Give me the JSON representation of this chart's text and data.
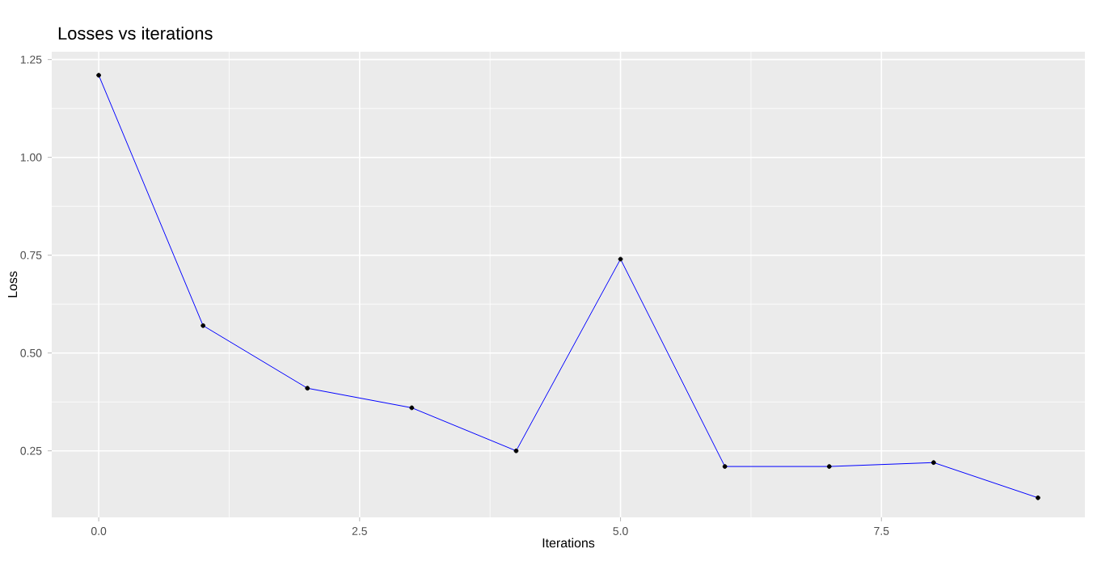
{
  "chart_data": {
    "type": "line",
    "title": "Losses vs iterations",
    "xlabel": "Iterations",
    "ylabel": "Loss",
    "x": [
      0,
      1,
      2,
      3,
      4,
      5,
      6,
      7,
      8,
      9
    ],
    "series": [
      {
        "type": "line",
        "color": "#0000ff",
        "marker": "none",
        "values": [
          1.21,
          0.57,
          0.41,
          0.36,
          0.25,
          0.74,
          0.21,
          0.21,
          0.22,
          0.13
        ]
      },
      {
        "type": "scatter",
        "color": "#000000",
        "marker": "circle",
        "values": [
          1.21,
          0.57,
          0.41,
          0.36,
          0.25,
          0.74,
          0.21,
          0.21,
          0.22,
          0.13
        ]
      }
    ],
    "xlim": [
      -0.45,
      9.45
    ],
    "ylim": [
      0.08,
      1.27
    ],
    "xticks": [
      {
        "value": 0,
        "label": "0.0"
      },
      {
        "value": 2.5,
        "label": "2.5"
      },
      {
        "value": 5,
        "label": "5.0"
      },
      {
        "value": 7.5,
        "label": "7.5"
      }
    ],
    "yticks": [
      {
        "value": 0.25,
        "label": "0.25"
      },
      {
        "value": 0.5,
        "label": "0.50"
      },
      {
        "value": 0.75,
        "label": "0.75"
      },
      {
        "value": 1,
        "label": "1.00"
      },
      {
        "value": 1.25,
        "label": "1.25"
      }
    ],
    "grid": true
  }
}
